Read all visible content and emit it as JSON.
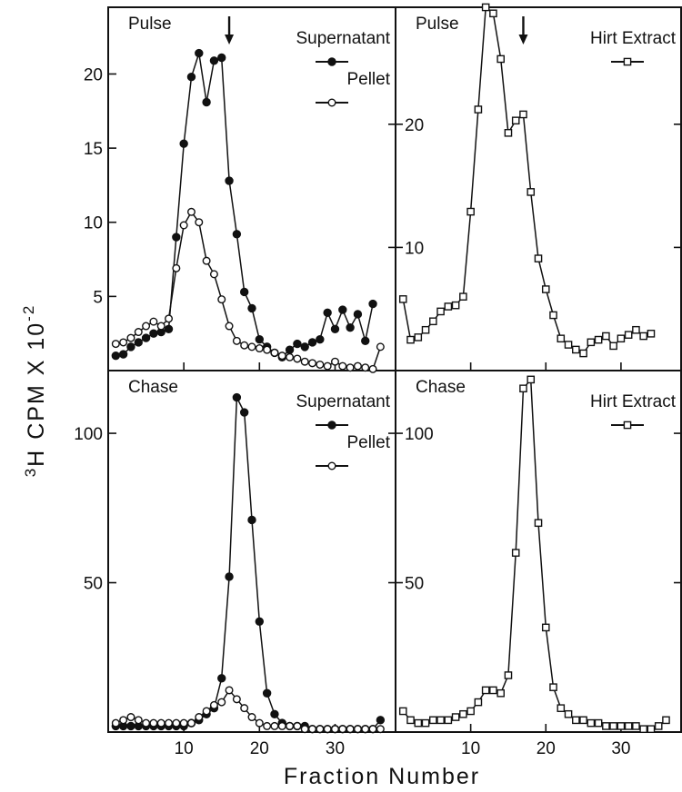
{
  "figure": {
    "ylabel": "3H CPM X 10-2",
    "ylabel_main": "CPM X 10",
    "ylabel_superscript_3": "3",
    "ylabel_H": "H",
    "ylabel_exponent": "-2",
    "xlabel": "Fraction Number"
  },
  "colors": {
    "ink": "#111111",
    "background": "#ffffff"
  },
  "chart_data": [
    {
      "type": "line",
      "title": "Pulse",
      "xlim": [
        0,
        38
      ],
      "ylim": [
        0,
        24.5
      ],
      "yticks": [
        5,
        10,
        15,
        20
      ],
      "yticklabels": [
        "5",
        "10",
        "15",
        "20"
      ],
      "xticks": [
        10,
        20,
        30
      ],
      "xticklabels": [
        "",
        "",
        ""
      ],
      "arrow_at_x": 16,
      "series": [
        {
          "name": "Supernatant",
          "marker": "filled-circle",
          "x": [
            1,
            2,
            3,
            4,
            5,
            6,
            7,
            8,
            9,
            10,
            11,
            12,
            13,
            14,
            15,
            16,
            17,
            18,
            19,
            20,
            21,
            22,
            23,
            24,
            25,
            26,
            27,
            28,
            29,
            30,
            31,
            32,
            33,
            34,
            35
          ],
          "values": [
            1.0,
            1.1,
            1.6,
            1.9,
            2.2,
            2.5,
            2.6,
            2.8,
            9.0,
            15.3,
            19.8,
            21.4,
            18.1,
            20.9,
            21.1,
            12.8,
            9.2,
            5.3,
            4.2,
            2.1,
            1.6,
            1.2,
            0.9,
            1.4,
            1.8,
            1.6,
            1.9,
            2.1,
            3.9,
            2.8,
            4.1,
            2.9,
            3.8,
            2.0,
            4.5
          ]
        },
        {
          "name": "Pellet",
          "marker": "open-circle",
          "x": [
            1,
            2,
            3,
            4,
            5,
            6,
            7,
            8,
            9,
            10,
            11,
            12,
            13,
            14,
            15,
            16,
            17,
            18,
            19,
            20,
            21,
            22,
            23,
            24,
            25,
            26,
            27,
            28,
            29,
            30,
            31,
            32,
            33,
            34,
            35,
            36
          ],
          "values": [
            1.8,
            1.9,
            2.2,
            2.6,
            3.0,
            3.3,
            3.0,
            3.5,
            6.9,
            9.8,
            10.7,
            10.0,
            7.4,
            6.5,
            4.8,
            3.0,
            2.0,
            1.7,
            1.6,
            1.5,
            1.4,
            1.2,
            1.0,
            0.9,
            0.8,
            0.6,
            0.5,
            0.4,
            0.3,
            0.6,
            0.3,
            0.2,
            0.3,
            0.2,
            0.1,
            1.6
          ]
        }
      ]
    },
    {
      "type": "line",
      "title": "Pulse",
      "xlim": [
        0,
        38
      ],
      "ylim": [
        0,
        29.5
      ],
      "yticks": [
        10,
        20
      ],
      "yticklabels": [
        "10",
        "20"
      ],
      "xticks": [
        10,
        20,
        30
      ],
      "xticklabels": [
        "",
        "",
        ""
      ],
      "arrow_at_x": 17,
      "series": [
        {
          "name": "Hirt Extract",
          "marker": "open-square",
          "x": [
            1,
            2,
            3,
            4,
            5,
            6,
            7,
            8,
            9,
            10,
            11,
            12,
            13,
            14,
            15,
            16,
            17,
            18,
            19,
            20,
            21,
            22,
            23,
            24,
            25,
            26,
            27,
            28,
            29,
            30,
            31,
            32,
            33,
            34
          ],
          "values": [
            5.8,
            2.5,
            2.7,
            3.3,
            4.0,
            4.8,
            5.2,
            5.3,
            6.0,
            12.9,
            21.2,
            29.5,
            29.0,
            25.3,
            19.3,
            20.3,
            20.8,
            14.5,
            9.1,
            6.6,
            4.5,
            2.6,
            2.1,
            1.7,
            1.4,
            2.3,
            2.5,
            2.8,
            2.0,
            2.6,
            2.9,
            3.3,
            2.8,
            3.0
          ]
        }
      ]
    },
    {
      "type": "line",
      "title": "Chase",
      "xlim": [
        0,
        38
      ],
      "ylim": [
        0,
        121
      ],
      "yticks": [
        50,
        100
      ],
      "yticklabels": [
        "50",
        "100"
      ],
      "xticks": [
        10,
        20,
        30
      ],
      "xticklabels": [
        "10",
        "20",
        "30"
      ],
      "series": [
        {
          "name": "Supernatant",
          "marker": "filled-circle",
          "x": [
            1,
            2,
            3,
            4,
            5,
            6,
            7,
            8,
            9,
            10,
            11,
            12,
            13,
            14,
            15,
            16,
            17,
            18,
            19,
            20,
            21,
            22,
            23,
            24,
            25,
            26,
            27,
            28,
            29,
            30,
            31,
            32,
            33,
            34,
            35,
            36
          ],
          "values": [
            2,
            2,
            2,
            2,
            2,
            2,
            2,
            2,
            2,
            2,
            3,
            4,
            6,
            8,
            18,
            52,
            112,
            107,
            71,
            37,
            13,
            6,
            3,
            2,
            2,
            2,
            1,
            1,
            1,
            1,
            1,
            1,
            1,
            1,
            1,
            4
          ]
        },
        {
          "name": "Pellet",
          "marker": "open-circle",
          "x": [
            1,
            2,
            3,
            4,
            5,
            6,
            7,
            8,
            9,
            10,
            11,
            12,
            13,
            14,
            15,
            16,
            17,
            18,
            19,
            20,
            21,
            22,
            23,
            24,
            25,
            26,
            27,
            28,
            29,
            30,
            31,
            32,
            33,
            34,
            35,
            36
          ],
          "values": [
            3,
            4,
            5,
            4,
            3,
            3,
            3,
            3,
            3,
            3,
            3,
            5,
            7,
            9,
            10,
            14,
            11,
            8,
            5,
            3,
            2,
            2,
            2,
            2,
            2,
            1,
            1,
            1,
            1,
            1,
            1,
            1,
            1,
            1,
            1,
            1
          ]
        }
      ]
    },
    {
      "type": "line",
      "title": "Chase",
      "xlim": [
        0,
        38
      ],
      "ylim": [
        0,
        121
      ],
      "yticks": [
        50,
        100
      ],
      "yticklabels": [
        "50",
        "100"
      ],
      "xticks": [
        10,
        20,
        30
      ],
      "xticklabels": [
        "10",
        "20",
        "30"
      ],
      "series": [
        {
          "name": "Hirt Extract",
          "marker": "open-square",
          "x": [
            1,
            2,
            3,
            4,
            5,
            6,
            7,
            8,
            9,
            10,
            11,
            12,
            13,
            14,
            15,
            16,
            17,
            18,
            19,
            20,
            21,
            22,
            23,
            24,
            25,
            26,
            27,
            28,
            29,
            30,
            31,
            32,
            33,
            34,
            35,
            36
          ],
          "values": [
            7,
            4,
            3,
            3,
            4,
            4,
            4,
            5,
            6,
            7,
            10,
            14,
            14,
            13,
            19,
            60,
            115,
            118,
            70,
            35,
            15,
            8,
            6,
            4,
            4,
            3,
            3,
            2,
            2,
            2,
            2,
            2,
            1,
            1,
            2,
            4
          ]
        }
      ]
    }
  ]
}
